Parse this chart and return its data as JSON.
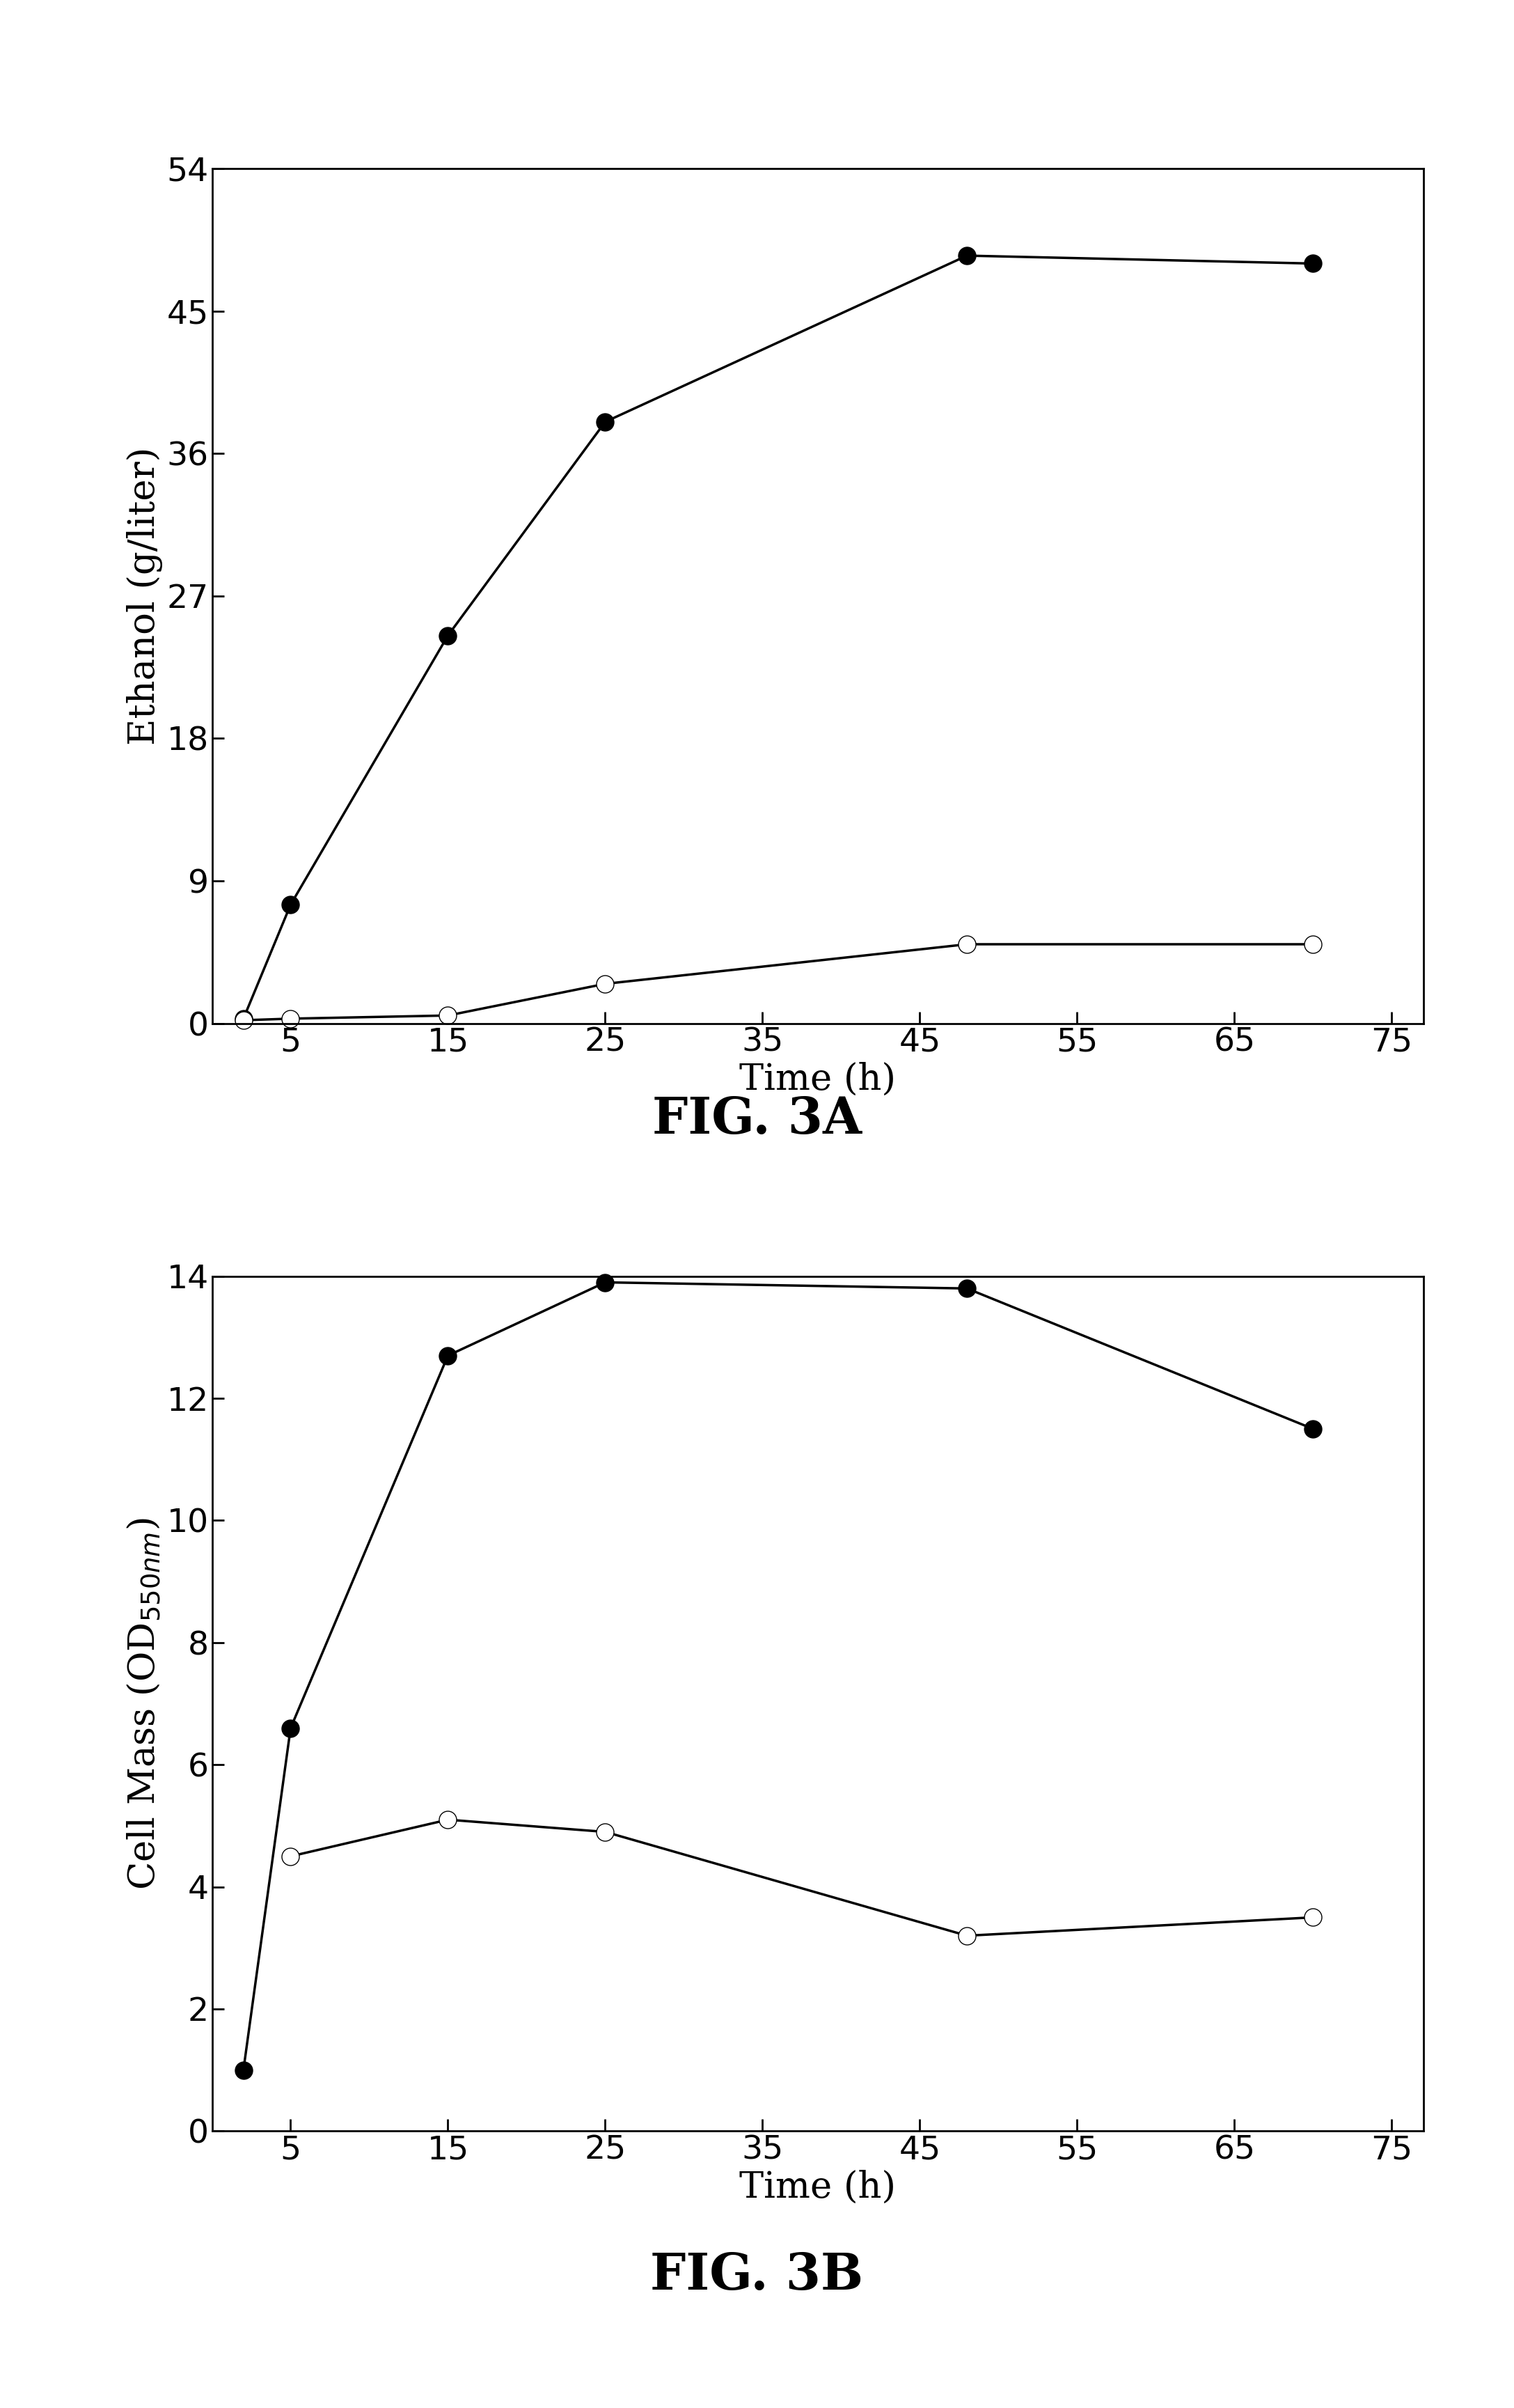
{
  "fig3a": {
    "title": "FIG. 3A",
    "xlabel": "Time (h)",
    "ylabel": "Ethanol (g/liter)",
    "xlim": [
      0,
      77
    ],
    "ylim": [
      0,
      54
    ],
    "xticks": [
      5,
      15,
      25,
      35,
      45,
      55,
      65,
      75
    ],
    "yticks": [
      0,
      9,
      18,
      27,
      36,
      45,
      54
    ],
    "filled_x": [
      2,
      5,
      15,
      25,
      48,
      70
    ],
    "filled_y": [
      0.3,
      7.5,
      24.5,
      38.0,
      48.5,
      48.0
    ],
    "open_x": [
      2,
      5,
      15,
      25,
      48,
      70
    ],
    "open_y": [
      0.2,
      0.3,
      0.5,
      2.5,
      5.0,
      5.0
    ]
  },
  "fig3b": {
    "title": "FIG. 3B",
    "xlabel": "Time (h)",
    "ylabel": "Cell Mass (OD$_{550nm}$)",
    "xlim": [
      0,
      77
    ],
    "ylim": [
      0,
      14
    ],
    "xticks": [
      5,
      15,
      25,
      35,
      45,
      55,
      65,
      75
    ],
    "yticks": [
      0,
      2,
      4,
      6,
      8,
      10,
      12,
      14
    ],
    "filled_x": [
      2,
      5,
      15,
      25,
      48,
      70
    ],
    "filled_y": [
      1.0,
      6.6,
      12.7,
      13.9,
      13.8,
      11.5
    ],
    "open_x": [
      5,
      15,
      25,
      48,
      70
    ],
    "open_y": [
      4.5,
      5.1,
      4.9,
      3.2,
      3.5
    ]
  },
  "marker_size": 18,
  "line_width": 2.5,
  "background_color": "#ffffff",
  "title_fontsize": 52,
  "label_fontsize": 38,
  "tick_fontsize": 34
}
